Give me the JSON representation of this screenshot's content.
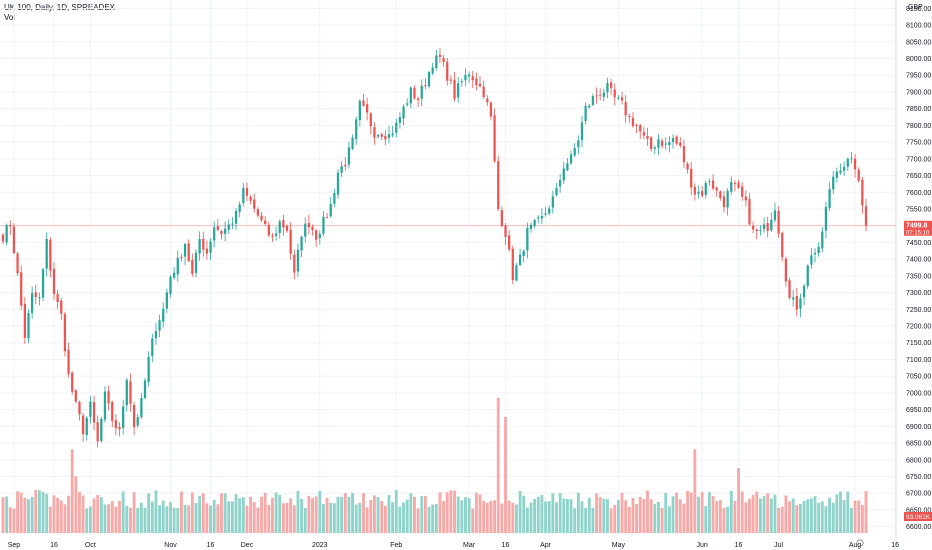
{
  "header": {
    "title": "UK 100, Daily, 1D, SPREADEX",
    "volume_label": "Vol"
  },
  "currency_label": "GBP",
  "current_price": {
    "value": "7499.8",
    "countdown": "07:15:10"
  },
  "current_volume": {
    "value": "93.061K"
  },
  "colors": {
    "up": "#26a69a",
    "down": "#ef5350",
    "vol_up": "#8fd3ca",
    "vol_down": "#f7a9a7",
    "price_line": "#f7a9a7",
    "grid": "#f0f3fa"
  },
  "chart_data": {
    "type": "candlestick",
    "title": "UK 100, Daily, 1D, SPREADEX",
    "ylim": [
      6575,
      8175
    ],
    "yticks": [
      8150,
      8100,
      8050,
      8000,
      7950,
      7900,
      7850,
      7800,
      7750,
      7700,
      7650,
      7600,
      7550,
      7500,
      7450,
      7400,
      7350,
      7300,
      7250,
      7200,
      7150,
      7100,
      7050,
      7000,
      6950,
      6900,
      6850,
      6800,
      6750,
      6700,
      6650,
      6600
    ],
    "xticks": [
      {
        "label": "Sep",
        "index": 3
      },
      {
        "label": "16",
        "index": 14
      },
      {
        "label": "Oct",
        "index": 24
      },
      {
        "label": "Nov",
        "index": 46
      },
      {
        "label": "16",
        "index": 57
      },
      {
        "label": "Dec",
        "index": 67
      },
      {
        "label": "2023",
        "index": 87
      },
      {
        "label": "Feb",
        "index": 108
      },
      {
        "label": "Mar",
        "index": 128
      },
      {
        "label": "16",
        "index": 138
      },
      {
        "label": "Apr",
        "index": 149
      },
      {
        "label": "May",
        "index": 169
      },
      {
        "label": "Jun",
        "index": 192
      },
      {
        "label": "16",
        "index": 202
      },
      {
        "label": "Jul",
        "index": 213
      },
      {
        "label": "Aug",
        "index": 234
      },
      {
        "label": "16",
        "index": 245
      }
    ],
    "anchors": [
      [
        0,
        7470
      ],
      [
        2,
        7505
      ],
      [
        4,
        7350
      ],
      [
        6,
        7170
      ],
      [
        8,
        7290
      ],
      [
        10,
        7280
      ],
      [
        12,
        7450
      ],
      [
        14,
        7300
      ],
      [
        16,
        7230
      ],
      [
        18,
        7050
      ],
      [
        20,
        6960
      ],
      [
        22,
        6890
      ],
      [
        24,
        6960
      ],
      [
        26,
        6850
      ],
      [
        28,
        6990
      ],
      [
        30,
        6920
      ],
      [
        32,
        6880
      ],
      [
        34,
        7050
      ],
      [
        36,
        6900
      ],
      [
        38,
        6970
      ],
      [
        40,
        7100
      ],
      [
        42,
        7200
      ],
      [
        44,
        7250
      ],
      [
        46,
        7350
      ],
      [
        48,
        7390
      ],
      [
        50,
        7450
      ],
      [
        52,
        7350
      ],
      [
        54,
        7460
      ],
      [
        56,
        7420
      ],
      [
        58,
        7500
      ],
      [
        60,
        7480
      ],
      [
        62,
        7500
      ],
      [
        64,
        7530
      ],
      [
        66,
        7600
      ],
      [
        68,
        7570
      ],
      [
        70,
        7530
      ],
      [
        72,
        7490
      ],
      [
        74,
        7460
      ],
      [
        76,
        7510
      ],
      [
        78,
        7490
      ],
      [
        80,
        7350
      ],
      [
        82,
        7480
      ],
      [
        84,
        7510
      ],
      [
        86,
        7470
      ],
      [
        88,
        7510
      ],
      [
        90,
        7560
      ],
      [
        92,
        7660
      ],
      [
        94,
        7690
      ],
      [
        96,
        7750
      ],
      [
        98,
        7860
      ],
      [
        100,
        7830
      ],
      [
        102,
        7780
      ],
      [
        104,
        7780
      ],
      [
        106,
        7770
      ],
      [
        108,
        7800
      ],
      [
        110,
        7850
      ],
      [
        112,
        7900
      ],
      [
        114,
        7880
      ],
      [
        116,
        7930
      ],
      [
        118,
        7990
      ],
      [
        120,
        8000
      ],
      [
        122,
        7950
      ],
      [
        124,
        7890
      ],
      [
        126,
        7930
      ],
      [
        128,
        7960
      ],
      [
        130,
        7930
      ],
      [
        132,
        7900
      ],
      [
        134,
        7820
      ],
      [
        136,
        7550
      ],
      [
        138,
        7480
      ],
      [
        140,
        7350
      ],
      [
        142,
        7400
      ],
      [
        144,
        7480
      ],
      [
        146,
        7500
      ],
      [
        148,
        7520
      ],
      [
        150,
        7560
      ],
      [
        152,
        7600
      ],
      [
        154,
        7680
      ],
      [
        156,
        7700
      ],
      [
        158,
        7760
      ],
      [
        160,
        7850
      ],
      [
        162,
        7880
      ],
      [
        164,
        7900
      ],
      [
        166,
        7910
      ],
      [
        168,
        7880
      ],
      [
        170,
        7860
      ],
      [
        172,
        7820
      ],
      [
        174,
        7800
      ],
      [
        176,
        7760
      ],
      [
        178,
        7730
      ],
      [
        180,
        7760
      ],
      [
        182,
        7740
      ],
      [
        184,
        7760
      ],
      [
        186,
        7730
      ],
      [
        188,
        7660
      ],
      [
        190,
        7600
      ],
      [
        192,
        7600
      ],
      [
        194,
        7640
      ],
      [
        196,
        7600
      ],
      [
        198,
        7570
      ],
      [
        200,
        7620
      ],
      [
        202,
        7600
      ],
      [
        204,
        7560
      ],
      [
        206,
        7480
      ],
      [
        208,
        7480
      ],
      [
        210,
        7500
      ],
      [
        212,
        7560
      ],
      [
        214,
        7420
      ],
      [
        216,
        7280
      ],
      [
        218,
        7260
      ],
      [
        220,
        7330
      ],
      [
        222,
        7420
      ],
      [
        224,
        7420
      ],
      [
        226,
        7550
      ],
      [
        228,
        7650
      ],
      [
        230,
        7680
      ],
      [
        232,
        7690
      ],
      [
        234,
        7680
      ],
      [
        236,
        7560
      ],
      [
        237,
        7500
      ]
    ],
    "volume": {
      "title": "Vol",
      "ylim_fraction": "overlay",
      "spikes": [
        {
          "index": 19,
          "relative": 0.62
        },
        {
          "index": 136,
          "relative": 1.0
        },
        {
          "index": 138,
          "relative": 0.86
        },
        {
          "index": 190,
          "relative": 0.62
        },
        {
          "index": 202,
          "relative": 0.48
        },
        {
          "index": 20,
          "relative": 0.42
        }
      ]
    },
    "bars": 238,
    "last_close": 7499.8
  }
}
